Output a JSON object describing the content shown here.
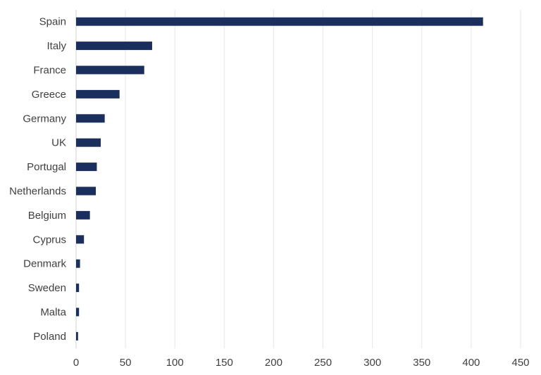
{
  "chart_data": {
    "type": "bar",
    "orientation": "horizontal",
    "categories": [
      "Spain",
      "Italy",
      "France",
      "Greece",
      "Germany",
      "UK",
      "Portugal",
      "Netherlands",
      "Belgium",
      "Cyprus",
      "Denmark",
      "Sweden",
      "Malta",
      "Poland"
    ],
    "values": [
      412,
      77,
      69,
      44,
      29,
      25,
      21,
      20,
      14,
      8,
      4,
      3,
      3,
      2
    ],
    "xlim": [
      0,
      450
    ],
    "xticks": [
      0,
      50,
      100,
      150,
      200,
      250,
      300,
      350,
      400,
      450
    ],
    "title": "",
    "xlabel": "",
    "ylabel": "",
    "grid": "vertical",
    "bar_color": "#1b2f5e"
  }
}
